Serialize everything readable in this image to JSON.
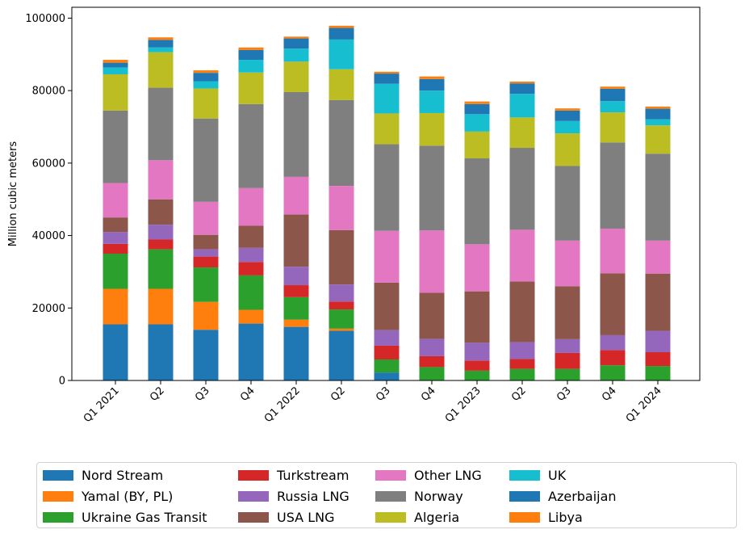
{
  "chart_data": {
    "type": "bar",
    "stacked": true,
    "ylabel": "Million cubic meters",
    "xlabel": "",
    "ylim": [
      0,
      103000
    ],
    "yticks": [
      0,
      20000,
      40000,
      60000,
      80000,
      100000
    ],
    "grid": false,
    "legend_placement": "bottom",
    "categories": [
      "Q1 2021",
      "Q2",
      "Q3",
      "Q4",
      "Q1 2022",
      "Q2",
      "Q3",
      "Q4",
      "Q1 2023",
      "Q2",
      "Q3",
      "Q4",
      "Q1 2024"
    ],
    "series": [
      {
        "name": "Nord Stream",
        "color": "#1f77b4",
        "values": [
          15500,
          15500,
          14000,
          15700,
          14800,
          13700,
          2200,
          0,
          0,
          0,
          0,
          0,
          0
        ]
      },
      {
        "name": "Yamal (BY, PL)",
        "color": "#ff7f0e",
        "values": [
          9800,
          9800,
          7700,
          3800,
          2000,
          600,
          0,
          0,
          0,
          0,
          0,
          0,
          0
        ]
      },
      {
        "name": "Ukraine Gas Transit",
        "color": "#2ca02c",
        "values": [
          9700,
          10900,
          9500,
          9500,
          6200,
          5300,
          3600,
          3700,
          2700,
          3200,
          3200,
          4200,
          4000
        ]
      },
      {
        "name": "Turkstream",
        "color": "#d62728",
        "values": [
          2700,
          2700,
          3000,
          3700,
          3300,
          2200,
          3800,
          3000,
          2800,
          2700,
          4400,
          4200,
          3800
        ]
      },
      {
        "name": "Russia LNG",
        "color": "#9467bd",
        "values": [
          3300,
          4100,
          2000,
          3900,
          5100,
          4700,
          4300,
          4800,
          4900,
          4700,
          3800,
          4100,
          5900
        ]
      },
      {
        "name": "USA LNG",
        "color": "#8c564b",
        "values": [
          4000,
          7000,
          4000,
          6100,
          14400,
          15000,
          13100,
          12700,
          14200,
          16700,
          14600,
          17100,
          15800
        ]
      },
      {
        "name": "Other LNG",
        "color": "#e377c2",
        "values": [
          9500,
          10800,
          9100,
          10400,
          10400,
          12200,
          14300,
          17200,
          13000,
          14300,
          12600,
          12300,
          9100
        ]
      },
      {
        "name": "Norway",
        "color": "#7f7f7f",
        "values": [
          20000,
          20000,
          23000,
          23200,
          23400,
          23700,
          23900,
          23400,
          23700,
          22600,
          20600,
          23800,
          24000
        ]
      },
      {
        "name": "Algeria",
        "color": "#bcbd22",
        "values": [
          10000,
          9800,
          8300,
          8700,
          8400,
          8500,
          8500,
          9000,
          7400,
          8400,
          9000,
          8300,
          7800
        ]
      },
      {
        "name": "UK",
        "color": "#17becf",
        "values": [
          1900,
          1300,
          2000,
          3500,
          3600,
          8200,
          8200,
          6200,
          4800,
          6500,
          3400,
          3100,
          1700
        ]
      },
      {
        "name": "Azerbaijan",
        "color": "#1f77b4",
        "values": [
          1300,
          2100,
          2300,
          2700,
          2800,
          3200,
          2800,
          3200,
          2800,
          2900,
          2900,
          3400,
          2900
        ]
      },
      {
        "name": "Libya",
        "color": "#ff7f0e",
        "values": [
          800,
          700,
          700,
          700,
          500,
          600,
          500,
          700,
          700,
          500,
          600,
          600,
          600
        ]
      }
    ]
  }
}
